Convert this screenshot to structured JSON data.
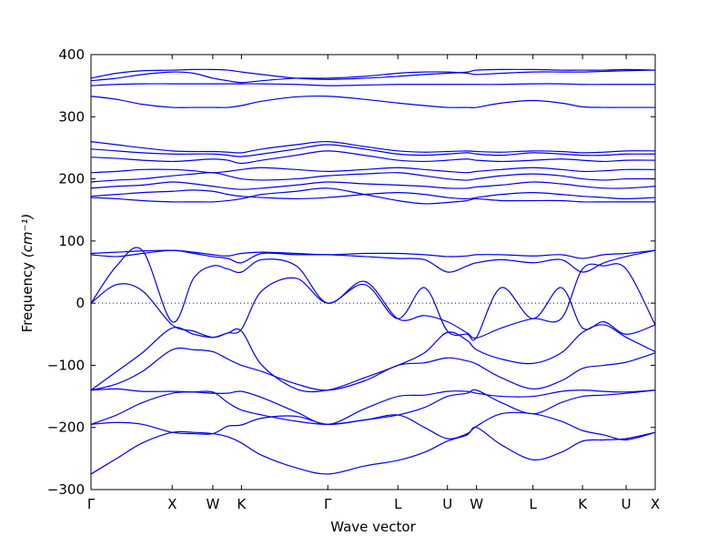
{
  "chart_data": {
    "type": "line",
    "xlabel": "Wave vector",
    "ylabel": "Frequency",
    "ylabel_unit": "(cm⁻¹)",
    "ylim": [
      -300,
      400
    ],
    "yticks": [
      -300,
      -200,
      -100,
      0,
      100,
      200,
      300,
      400
    ],
    "kpath": [
      {
        "label": "Γ",
        "pos": 0.0
      },
      {
        "label": "X",
        "pos": 0.95
      },
      {
        "label": "W",
        "pos": 1.425
      },
      {
        "label": "K",
        "pos": 1.76
      },
      {
        "label": "Γ",
        "pos": 2.77
      },
      {
        "label": "L",
        "pos": 3.59
      },
      {
        "label": "U",
        "pos": 4.17
      },
      {
        "label": "W",
        "pos": 4.51
      },
      {
        "label": "L",
        "pos": 5.17
      },
      {
        "label": "K",
        "pos": 5.75
      },
      {
        "label": "U",
        "pos": 6.26
      },
      {
        "label": "X",
        "pos": 6.6
      }
    ],
    "zero_line": true,
    "line_color": "#0000ee",
    "series": [
      {
        "x": [
          0,
          0.3,
          0.6,
          0.95,
          1.2,
          1.425,
          1.6,
          1.76,
          2.0,
          2.4,
          2.77,
          3.2,
          3.59,
          3.9,
          4.17,
          4.4,
          4.51,
          4.8,
          5.17,
          5.5,
          5.75,
          6.0,
          6.26,
          6.6
        ],
        "y": [
          -275,
          -250,
          -225,
          -208,
          -208,
          -210,
          -215,
          -225,
          -245,
          -265,
          -275,
          -262,
          -253,
          -240,
          -222,
          -212,
          -200,
          -228,
          -252,
          -240,
          -222,
          -220,
          -218,
          -208
        ]
      },
      {
        "x": [
          0,
          0.3,
          0.6,
          0.95,
          1.2,
          1.425,
          1.6,
          1.76,
          2.0,
          2.4,
          2.77,
          3.2,
          3.59,
          3.9,
          4.17,
          4.4,
          4.51,
          4.8,
          5.17,
          5.5,
          5.75,
          6.0,
          6.26,
          6.6
        ],
        "y": [
          -195,
          -192,
          -195,
          -208,
          -210,
          -210,
          -198,
          -196,
          -185,
          -182,
          -195,
          -188,
          -180,
          -200,
          -218,
          -210,
          -198,
          -178,
          -178,
          -190,
          -205,
          -212,
          -220,
          -208
        ]
      },
      {
        "x": [
          0,
          0.3,
          0.6,
          0.95,
          1.2,
          1.425,
          1.6,
          1.76,
          2.0,
          2.4,
          2.77,
          3.2,
          3.59,
          3.9,
          4.17,
          4.4,
          4.51,
          4.8,
          5.17,
          5.5,
          5.75,
          6.0,
          6.26,
          6.6
        ],
        "y": [
          -195,
          -180,
          -160,
          -145,
          -143,
          -143,
          -160,
          -172,
          -180,
          -190,
          -195,
          -188,
          -180,
          -168,
          -150,
          -145,
          -140,
          -160,
          -178,
          -160,
          -150,
          -148,
          -145,
          -140
        ]
      },
      {
        "x": [
          0,
          0.3,
          0.6,
          0.95,
          1.2,
          1.425,
          1.6,
          1.76,
          2.0,
          2.4,
          2.77,
          3.2,
          3.59,
          3.9,
          4.17,
          4.4,
          4.51,
          4.8,
          5.17,
          5.5,
          5.75,
          6.0,
          6.26,
          6.6
        ],
        "y": [
          -140,
          -138,
          -142,
          -142,
          -143,
          -145,
          -145,
          -142,
          -152,
          -175,
          -195,
          -170,
          -150,
          -148,
          -142,
          -142,
          -145,
          -150,
          -150,
          -142,
          -140,
          -142,
          -143,
          -140
        ]
      },
      {
        "x": [
          0,
          0.3,
          0.6,
          0.95,
          1.2,
          1.425,
          1.6,
          1.76,
          2.0,
          2.4,
          2.77,
          3.2,
          3.59,
          3.9,
          4.17,
          4.4,
          4.51,
          4.8,
          5.17,
          5.5,
          5.75,
          6.0,
          6.26,
          6.6
        ],
        "y": [
          -140,
          -130,
          -110,
          -75,
          -75,
          -78,
          -90,
          -100,
          -110,
          -130,
          -140,
          -125,
          -100,
          -96,
          -88,
          -93,
          -98,
          -120,
          -138,
          -125,
          -105,
          -100,
          -95,
          -80
        ]
      },
      {
        "x": [
          0,
          0.3,
          0.6,
          0.95,
          1.2,
          1.425,
          1.6,
          1.76,
          2.0,
          2.4,
          2.77,
          3.2,
          3.59,
          3.9,
          4.17,
          4.4,
          4.51,
          4.8,
          5.17,
          5.5,
          5.75,
          6.0,
          6.26,
          6.6
        ],
        "y": [
          -140,
          -110,
          -80,
          -40,
          -50,
          -55,
          -48,
          -45,
          -100,
          -138,
          -140,
          -120,
          -100,
          -80,
          -47,
          -60,
          -75,
          -90,
          -97,
          -80,
          -47,
          -35,
          -55,
          -78
        ]
      },
      {
        "x": [
          0,
          0.3,
          0.6,
          0.95,
          1.2,
          1.425,
          1.6,
          1.76,
          2.0,
          2.4,
          2.77,
          3.2,
          3.59,
          3.9,
          4.17,
          4.4,
          4.51,
          4.8,
          5.17,
          5.5,
          5.75,
          6.0,
          6.26,
          6.6
        ],
        "y": [
          0,
          30,
          20,
          -35,
          -45,
          -55,
          -48,
          -42,
          20,
          40,
          0,
          30,
          -25,
          25,
          -45,
          -50,
          -55,
          25,
          -25,
          25,
          -40,
          -30,
          -50,
          -35
        ]
      },
      {
        "x": [
          0,
          0.3,
          0.6,
          0.95,
          1.2,
          1.425,
          1.6,
          1.76,
          2.0,
          2.4,
          2.77,
          3.2,
          3.59,
          3.9,
          4.17,
          4.4,
          4.51,
          4.8,
          5.17,
          5.5,
          5.75,
          6.0,
          6.26,
          6.6
        ],
        "y": [
          0,
          60,
          85,
          -30,
          40,
          60,
          55,
          50,
          70,
          60,
          0,
          35,
          -25,
          -20,
          -30,
          -48,
          -56,
          -40,
          -25,
          -25,
          55,
          60,
          55,
          -35
        ]
      },
      {
        "x": [
          0,
          0.3,
          0.6,
          0.95,
          1.2,
          1.425,
          1.6,
          1.76,
          2.0,
          2.4,
          2.77,
          3.2,
          3.59,
          3.9,
          4.17,
          4.4,
          4.51,
          4.8,
          5.17,
          5.5,
          5.75,
          6.0,
          6.26,
          6.6
        ],
        "y": [
          78,
          75,
          80,
          85,
          80,
          75,
          72,
          65,
          80,
          78,
          78,
          75,
          72,
          70,
          50,
          60,
          65,
          70,
          65,
          70,
          50,
          65,
          75,
          85
        ]
      },
      {
        "x": [
          0,
          0.3,
          0.6,
          0.95,
          1.2,
          1.425,
          1.6,
          1.76,
          2.0,
          2.4,
          2.77,
          3.2,
          3.59,
          3.9,
          4.17,
          4.4,
          4.51,
          4.8,
          5.17,
          5.5,
          5.75,
          6.0,
          6.26,
          6.6
        ],
        "y": [
          80,
          82,
          84,
          85,
          82,
          78,
          76,
          80,
          82,
          80,
          78,
          80,
          80,
          78,
          75,
          76,
          78,
          78,
          76,
          78,
          72,
          78,
          80,
          85
        ]
      },
      {
        "x": [
          0,
          0.3,
          0.6,
          0.95,
          1.2,
          1.425,
          1.6,
          1.76,
          2.0,
          2.4,
          2.77,
          3.2,
          3.59,
          3.9,
          4.17,
          4.4,
          4.51,
          4.8,
          5.17,
          5.5,
          5.75,
          6.0,
          6.26,
          6.6
        ],
        "y": [
          170,
          168,
          165,
          163,
          163,
          163,
          165,
          168,
          175,
          180,
          185,
          175,
          165,
          160,
          162,
          165,
          168,
          165,
          165,
          165,
          163,
          163,
          163,
          163
        ]
      },
      {
        "x": [
          0,
          0.3,
          0.6,
          0.95,
          1.2,
          1.425,
          1.6,
          1.76,
          2.0,
          2.4,
          2.77,
          3.2,
          3.59,
          3.9,
          4.17,
          4.4,
          4.51,
          4.8,
          5.17,
          5.5,
          5.75,
          6.0,
          6.26,
          6.6
        ],
        "y": [
          172,
          175,
          178,
          180,
          182,
          180,
          175,
          172,
          170,
          168,
          170,
          175,
          178,
          175,
          170,
          168,
          170,
          175,
          178,
          175,
          172,
          170,
          168,
          170
        ]
      },
      {
        "x": [
          0,
          0.3,
          0.6,
          0.95,
          1.2,
          1.425,
          1.6,
          1.76,
          2.0,
          2.4,
          2.77,
          3.2,
          3.59,
          3.9,
          4.17,
          4.4,
          4.51,
          4.8,
          5.17,
          5.5,
          5.75,
          6.0,
          6.26,
          6.6
        ],
        "y": [
          185,
          188,
          190,
          195,
          192,
          188,
          185,
          183,
          185,
          190,
          195,
          192,
          190,
          188,
          185,
          185,
          187,
          190,
          195,
          192,
          188,
          185,
          185,
          188
        ]
      },
      {
        "x": [
          0,
          0.3,
          0.6,
          0.95,
          1.2,
          1.425,
          1.6,
          1.76,
          2.0,
          2.4,
          2.77,
          3.2,
          3.59,
          3.9,
          4.17,
          4.4,
          4.51,
          4.8,
          5.17,
          5.5,
          5.75,
          6.0,
          6.26,
          6.6
        ],
        "y": [
          195,
          198,
          200,
          205,
          208,
          210,
          205,
          200,
          198,
          200,
          205,
          208,
          210,
          205,
          200,
          198,
          200,
          205,
          208,
          205,
          200,
          198,
          200,
          200
        ]
      },
      {
        "x": [
          0,
          0.3,
          0.6,
          0.95,
          1.2,
          1.425,
          1.6,
          1.76,
          2.0,
          2.4,
          2.77,
          3.2,
          3.59,
          3.9,
          4.17,
          4.4,
          4.51,
          4.8,
          5.17,
          5.5,
          5.75,
          6.0,
          6.26,
          6.6
        ],
        "y": [
          210,
          212,
          215,
          215,
          213,
          210,
          212,
          215,
          218,
          215,
          212,
          215,
          218,
          215,
          212,
          210,
          212,
          215,
          218,
          215,
          212,
          213,
          215,
          215
        ]
      },
      {
        "x": [
          0,
          0.3,
          0.6,
          0.95,
          1.2,
          1.425,
          1.6,
          1.76,
          2.0,
          2.4,
          2.77,
          3.2,
          3.59,
          3.9,
          4.17,
          4.4,
          4.51,
          4.8,
          5.17,
          5.5,
          5.75,
          6.0,
          6.26,
          6.6
        ],
        "y": [
          235,
          233,
          230,
          228,
          230,
          232,
          230,
          225,
          230,
          238,
          245,
          238,
          230,
          228,
          230,
          232,
          230,
          228,
          230,
          232,
          230,
          228,
          230,
          230
        ]
      },
      {
        "x": [
          0,
          0.3,
          0.6,
          0.95,
          1.2,
          1.425,
          1.6,
          1.76,
          2.0,
          2.4,
          2.77,
          3.2,
          3.59,
          3.9,
          4.17,
          4.4,
          4.51,
          4.8,
          5.17,
          5.5,
          5.75,
          6.0,
          6.26,
          6.6
        ],
        "y": [
          248,
          245,
          242,
          240,
          240,
          240,
          238,
          236,
          240,
          248,
          255,
          248,
          240,
          238,
          240,
          242,
          240,
          238,
          242,
          240,
          238,
          238,
          240,
          240
        ]
      },
      {
        "x": [
          0,
          0.3,
          0.6,
          0.95,
          1.2,
          1.425,
          1.6,
          1.76,
          2.0,
          2.4,
          2.77,
          3.2,
          3.59,
          3.9,
          4.17,
          4.4,
          4.51,
          4.8,
          5.17,
          5.5,
          5.75,
          6.0,
          6.26,
          6.6
        ],
        "y": [
          260,
          255,
          250,
          245,
          244,
          244,
          243,
          242,
          248,
          255,
          260,
          252,
          245,
          243,
          244,
          245,
          244,
          243,
          245,
          244,
          242,
          243,
          245,
          245
        ]
      },
      {
        "x": [
          0,
          0.3,
          0.6,
          0.95,
          1.2,
          1.425,
          1.6,
          1.76,
          2.0,
          2.4,
          2.77,
          3.2,
          3.59,
          3.9,
          4.17,
          4.4,
          4.51,
          4.8,
          5.17,
          5.5,
          5.75,
          6.0,
          6.26,
          6.6
        ],
        "y": [
          333,
          328,
          320,
          315,
          315,
          315,
          315,
          318,
          325,
          332,
          333,
          328,
          322,
          318,
          315,
          315,
          315,
          322,
          326,
          322,
          316,
          315,
          315,
          315
        ]
      },
      {
        "x": [
          0,
          0.3,
          0.6,
          0.95,
          1.2,
          1.425,
          1.6,
          1.76,
          2.0,
          2.4,
          2.77,
          3.2,
          3.59,
          3.9,
          4.17,
          4.4,
          4.51,
          4.8,
          5.17,
          5.5,
          5.75,
          6.0,
          6.26,
          6.6
        ],
        "y": [
          350,
          352,
          353,
          353,
          353,
          353,
          353,
          353,
          353,
          352,
          350,
          351,
          352,
          352,
          352,
          352,
          352,
          352,
          353,
          353,
          352,
          352,
          352,
          352
        ]
      },
      {
        "x": [
          0,
          0.3,
          0.6,
          0.95,
          1.2,
          1.425,
          1.6,
          1.76,
          2.0,
          2.4,
          2.77,
          3.2,
          3.59,
          3.9,
          4.17,
          4.4,
          4.51,
          4.8,
          5.17,
          5.5,
          5.75,
          6.0,
          6.26,
          6.6
        ],
        "y": [
          358,
          362,
          368,
          372,
          370,
          362,
          358,
          355,
          358,
          362,
          362,
          365,
          370,
          372,
          372,
          370,
          368,
          370,
          372,
          372,
          372,
          373,
          374,
          375
        ]
      },
      {
        "x": [
          0,
          0.3,
          0.6,
          0.95,
          1.2,
          1.425,
          1.6,
          1.76,
          2.0,
          2.4,
          2.77,
          3.2,
          3.59,
          3.9,
          4.17,
          4.4,
          4.51,
          4.8,
          5.17,
          5.5,
          5.75,
          6.0,
          6.26,
          6.6
        ],
        "y": [
          362,
          370,
          374,
          375,
          376,
          376,
          375,
          372,
          368,
          362,
          360,
          362,
          365,
          368,
          370,
          372,
          375,
          376,
          376,
          375,
          375,
          375,
          376,
          375
        ]
      }
    ]
  }
}
